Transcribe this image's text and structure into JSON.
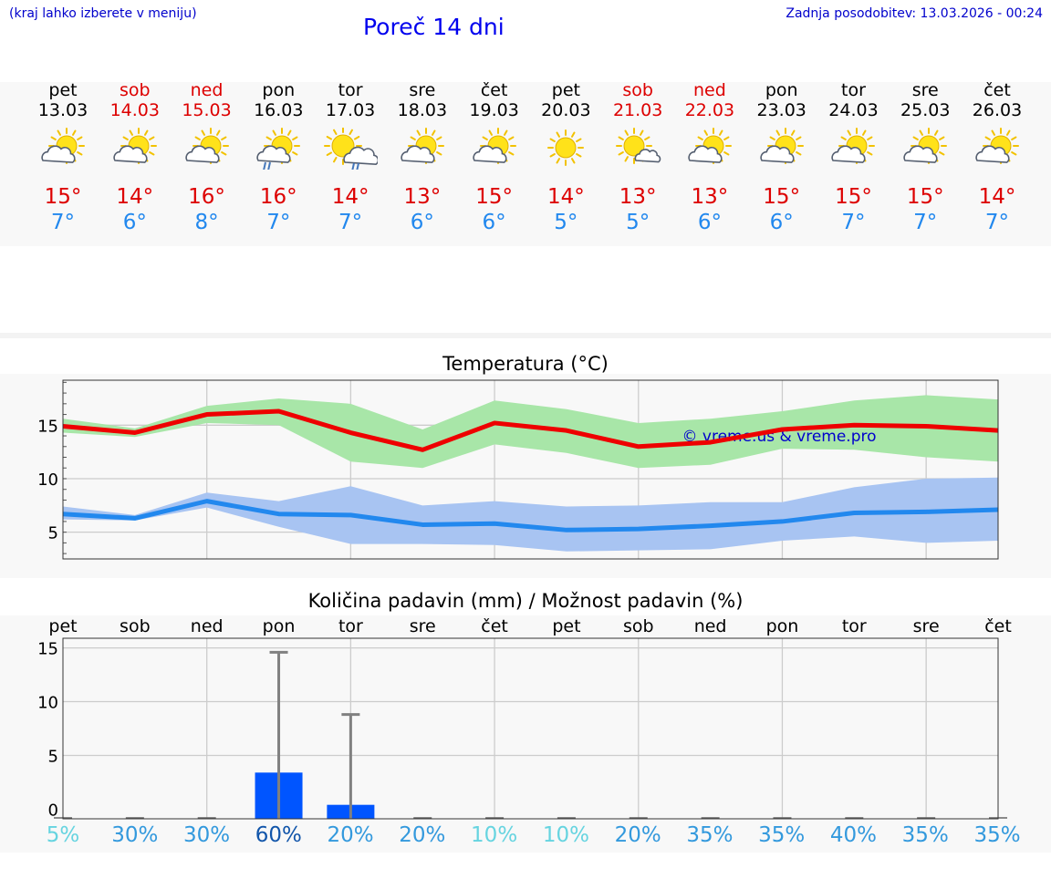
{
  "header": {
    "hint": "(kraj lahko izberete v meniju)",
    "title": "Poreč 14 dni",
    "updated": "Zadnja posodobitev: 13.03.2026 - 00:24"
  },
  "days": [
    {
      "name": "pet",
      "date": "13.03",
      "weekend": false,
      "icon": "sun-cloud-icon",
      "hi": "15°",
      "lo": "7°"
    },
    {
      "name": "sob",
      "date": "14.03",
      "weekend": true,
      "icon": "sun-cloud-icon",
      "hi": "14°",
      "lo": "6°"
    },
    {
      "name": "ned",
      "date": "15.03",
      "weekend": true,
      "icon": "sun-cloud-icon",
      "hi": "16°",
      "lo": "8°"
    },
    {
      "name": "pon",
      "date": "16.03",
      "weekend": false,
      "icon": "sun-cloud-rain-icon",
      "hi": "16°",
      "lo": "7°"
    },
    {
      "name": "tor",
      "date": "17.03",
      "weekend": false,
      "icon": "sun-big-cloud-rain-icon",
      "hi": "14°",
      "lo": "7°"
    },
    {
      "name": "sre",
      "date": "18.03",
      "weekend": false,
      "icon": "sun-cloud-icon",
      "hi": "13°",
      "lo": "6°"
    },
    {
      "name": "čet",
      "date": "19.03",
      "weekend": false,
      "icon": "sun-cloud-icon",
      "hi": "15°",
      "lo": "6°"
    },
    {
      "name": "pet",
      "date": "20.03",
      "weekend": false,
      "icon": "sun-icon",
      "hi": "14°",
      "lo": "5°"
    },
    {
      "name": "sob",
      "date": "21.03",
      "weekend": true,
      "icon": "sun-small-cloud-icon",
      "hi": "13°",
      "lo": "5°"
    },
    {
      "name": "ned",
      "date": "22.03",
      "weekend": true,
      "icon": "sun-cloud-icon",
      "hi": "13°",
      "lo": "6°"
    },
    {
      "name": "pon",
      "date": "23.03",
      "weekend": false,
      "icon": "sun-cloud-icon",
      "hi": "15°",
      "lo": "6°"
    },
    {
      "name": "tor",
      "date": "24.03",
      "weekend": false,
      "icon": "sun-cloud-icon",
      "hi": "15°",
      "lo": "7°"
    },
    {
      "name": "sre",
      "date": "25.03",
      "weekend": false,
      "icon": "sun-cloud-icon",
      "hi": "15°",
      "lo": "7°"
    },
    {
      "name": "čet",
      "date": "26.03",
      "weekend": false,
      "icon": "sun-cloud-icon",
      "hi": "14°",
      "lo": "7°"
    }
  ],
  "colors": {
    "weekend": "#dd0000",
    "hi_line": "#ee0000",
    "lo_line": "#2288ee",
    "hi_band": "#a8e6a8",
    "lo_band": "#a8c4f2",
    "rain_bar": "#0055ff",
    "error_bar": "#808080"
  },
  "chart_data": [
    {
      "type": "line",
      "title": "Temperatura (°C)",
      "watermark": "© vreme.us & vreme.pro",
      "x": [
        0,
        1,
        2,
        3,
        4,
        5,
        6,
        7,
        8,
        9,
        10,
        11,
        12,
        13
      ],
      "ylim": [
        2.5,
        19.2
      ],
      "yticks": [
        5,
        10,
        15
      ],
      "series": [
        {
          "name": "max",
          "values": [
            14.9,
            14.3,
            16.0,
            16.3,
            14.3,
            12.7,
            15.2,
            14.5,
            13.0,
            13.4,
            14.6,
            15.0,
            14.9,
            14.5
          ],
          "band_low": [
            14.3,
            13.9,
            15.2,
            15.0,
            11.6,
            11.0,
            13.2,
            12.4,
            11.0,
            11.3,
            12.8,
            12.7,
            12.0,
            11.6
          ],
          "band_high": [
            15.6,
            14.7,
            16.8,
            17.5,
            17.0,
            14.6,
            17.3,
            16.5,
            15.2,
            15.6,
            16.3,
            17.3,
            17.8,
            17.4
          ]
        },
        {
          "name": "min",
          "values": [
            6.7,
            6.3,
            7.9,
            6.7,
            6.6,
            5.7,
            5.8,
            5.2,
            5.3,
            5.6,
            6.0,
            6.8,
            6.9,
            7.1
          ],
          "band_low": [
            6.2,
            6.1,
            7.3,
            5.5,
            3.9,
            3.9,
            3.8,
            3.2,
            3.3,
            3.4,
            4.2,
            4.6,
            4.0,
            4.2
          ],
          "band_high": [
            7.4,
            6.6,
            8.7,
            7.9,
            9.3,
            7.5,
            7.9,
            7.4,
            7.5,
            7.8,
            7.8,
            9.2,
            10.0,
            10.1
          ]
        }
      ]
    },
    {
      "type": "bar",
      "title": "Količina padavin (mm) / Možnost padavin (%)",
      "categories": [
        "pet",
        "sob",
        "ned",
        "pon",
        "tor",
        "sre",
        "čet",
        "pet",
        "sob",
        "ned",
        "pon",
        "tor",
        "sre",
        "čet"
      ],
      "ylim": [
        -0.9,
        15.9
      ],
      "yticks": [
        0,
        5,
        10,
        15
      ],
      "values": [
        0,
        0,
        0,
        3.4,
        0.4,
        0,
        0,
        0,
        0,
        0,
        0,
        0,
        0,
        0
      ],
      "error_max": [
        0,
        0,
        0,
        14.6,
        8.8,
        0,
        0,
        0,
        0,
        0,
        0,
        0,
        0,
        0
      ],
      "probability": [
        "5%",
        "30%",
        "30%",
        "60%",
        "20%",
        "20%",
        "10%",
        "10%",
        "20%",
        "35%",
        "35%",
        "40%",
        "35%",
        "35%"
      ],
      "probability_values": [
        5,
        30,
        30,
        60,
        20,
        20,
        10,
        10,
        20,
        35,
        35,
        40,
        35,
        35
      ]
    }
  ]
}
